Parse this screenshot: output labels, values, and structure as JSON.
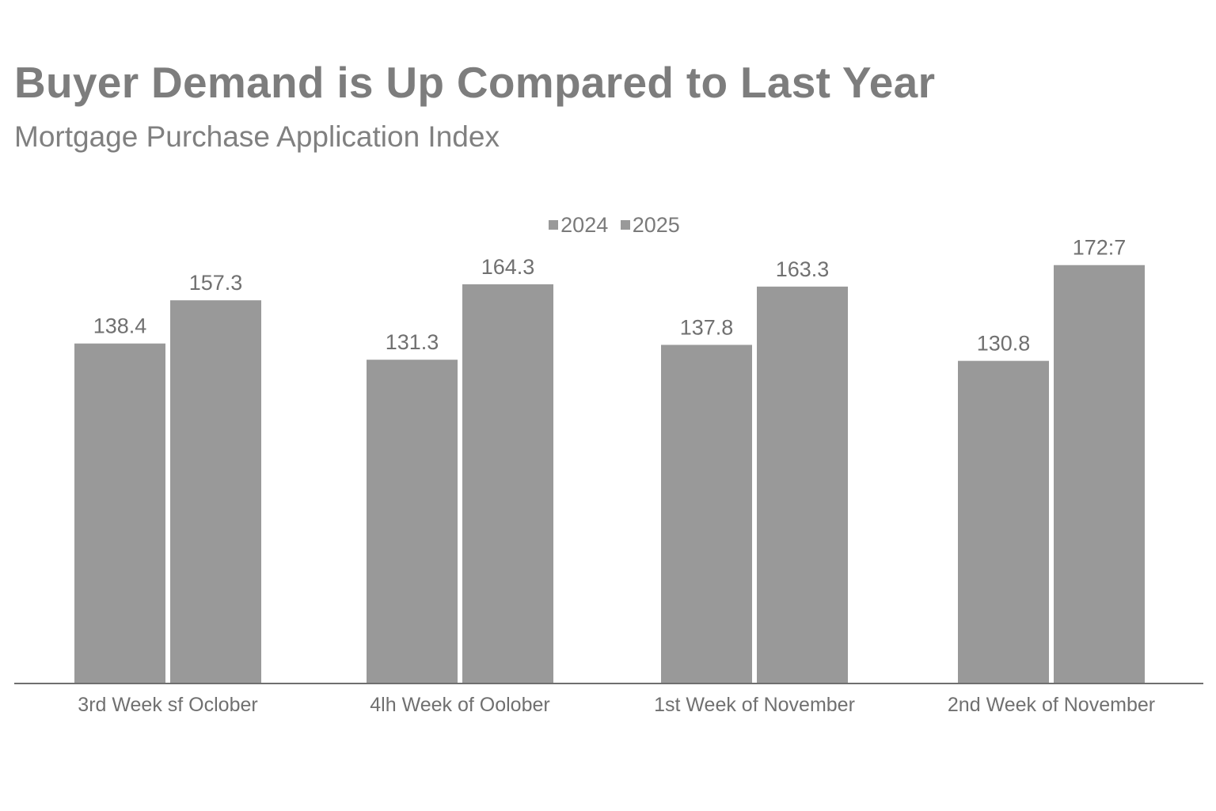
{
  "title": "Buyer Demand is Up Compared to Last Year",
  "subtitle": "Mortgage Purchase Application Index",
  "chart_data": {
    "type": "bar",
    "title": "Buyer Demand is Up Compared to Last Year",
    "subtitle": "Mortgage Purchase Application Index",
    "categories": [
      "3rd Week sf Oclober",
      "4lh Week of Oolober",
      "1st Week of November",
      "2nd Week of November"
    ],
    "series": [
      {
        "name": "2024",
        "values": [
          138.4,
          131.3,
          137.8,
          130.8
        ],
        "labels": [
          "138.4",
          "131.3",
          "137.8",
          "130.8"
        ],
        "color": "#999999"
      },
      {
        "name": "2025",
        "values": [
          157.3,
          164.3,
          163.3,
          172.7
        ],
        "labels": [
          "157.3",
          "164.3",
          "163.3",
          "172:7"
        ],
        "color": "#999999"
      }
    ],
    "xlabel": "",
    "ylabel": "",
    "ylim": [
      -10,
      190
    ],
    "grid": false,
    "legend": "top-center"
  }
}
